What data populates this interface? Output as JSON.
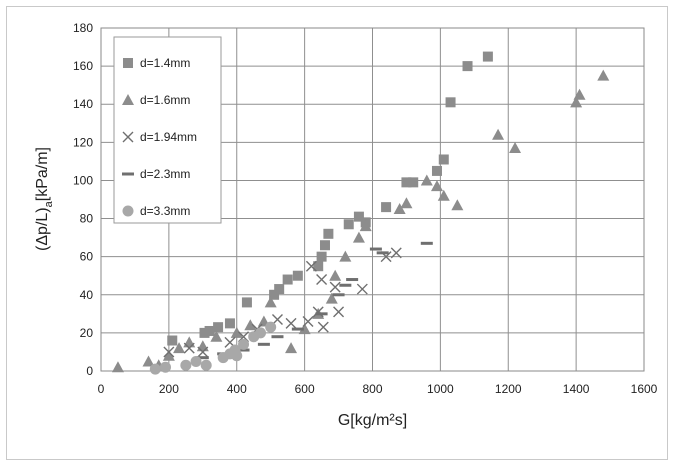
{
  "chart_data": {
    "type": "scatter",
    "xlabel": "G[kg/m²s]",
    "ylabel_main": "(Δp/L)",
    "ylabel_sub": "a",
    "ylabel_unit": "[kPa/m]",
    "xlim": [
      0,
      1600
    ],
    "ylim": [
      0,
      180
    ],
    "xticks": [
      "0",
      "200",
      "400",
      "600",
      "800",
      "1000",
      "1200",
      "1400",
      "1600"
    ],
    "yticks": [
      "0",
      "20",
      "40",
      "60",
      "80",
      "100",
      "120",
      "140",
      "160",
      "180"
    ],
    "grid": true,
    "legend_position": "top-left",
    "marker_color": "#8c8c8c",
    "series": [
      {
        "name": "d=1.4mm",
        "marker": "square",
        "points": [
          [
            210,
            16
          ],
          [
            305,
            20
          ],
          [
            320,
            21
          ],
          [
            345,
            23
          ],
          [
            380,
            25
          ],
          [
            430,
            36
          ],
          [
            510,
            40
          ],
          [
            525,
            43
          ],
          [
            550,
            48
          ],
          [
            580,
            50
          ],
          [
            640,
            55
          ],
          [
            650,
            60
          ],
          [
            660,
            66
          ],
          [
            670,
            72
          ],
          [
            730,
            77
          ],
          [
            760,
            81
          ],
          [
            780,
            78
          ],
          [
            840,
            86
          ],
          [
            900,
            99
          ],
          [
            920,
            99
          ],
          [
            990,
            105
          ],
          [
            1010,
            111
          ],
          [
            1030,
            141
          ],
          [
            1080,
            160
          ],
          [
            1140,
            165
          ]
        ]
      },
      {
        "name": "d=1.6mm",
        "marker": "triangle",
        "points": [
          [
            50,
            2
          ],
          [
            140,
            5
          ],
          [
            170,
            3
          ],
          [
            200,
            8
          ],
          [
            230,
            12
          ],
          [
            260,
            15
          ],
          [
            300,
            13
          ],
          [
            340,
            18
          ],
          [
            400,
            20
          ],
          [
            440,
            24
          ],
          [
            480,
            26
          ],
          [
            500,
            36
          ],
          [
            560,
            12
          ],
          [
            600,
            22
          ],
          [
            640,
            30
          ],
          [
            680,
            38
          ],
          [
            690,
            50
          ],
          [
            720,
            60
          ],
          [
            760,
            70
          ],
          [
            780,
            76
          ],
          [
            880,
            85
          ],
          [
            900,
            88
          ],
          [
            960,
            100
          ],
          [
            990,
            97
          ],
          [
            1010,
            92
          ],
          [
            1050,
            87
          ],
          [
            1170,
            124
          ],
          [
            1220,
            117
          ],
          [
            1400,
            141
          ],
          [
            1410,
            145
          ],
          [
            1480,
            155
          ]
        ]
      },
      {
        "name": "d=1.94mm",
        "marker": "cross",
        "points": [
          [
            200,
            10
          ],
          [
            260,
            12
          ],
          [
            300,
            10
          ],
          [
            380,
            15
          ],
          [
            420,
            18
          ],
          [
            460,
            22
          ],
          [
            520,
            27
          ],
          [
            560,
            25
          ],
          [
            610,
            26
          ],
          [
            620,
            55
          ],
          [
            640,
            31
          ],
          [
            650,
            48
          ],
          [
            655,
            23
          ],
          [
            690,
            44
          ],
          [
            700,
            31
          ],
          [
            770,
            43
          ],
          [
            840,
            60
          ],
          [
            870,
            62
          ]
        ]
      },
      {
        "name": "d=2.3mm",
        "marker": "dash",
        "points": [
          [
            300,
            7
          ],
          [
            360,
            9
          ],
          [
            420,
            11
          ],
          [
            480,
            14
          ],
          [
            520,
            18
          ],
          [
            580,
            22
          ],
          [
            650,
            30
          ],
          [
            700,
            40
          ],
          [
            720,
            45
          ],
          [
            740,
            48
          ],
          [
            810,
            64
          ],
          [
            830,
            62
          ],
          [
            960,
            67
          ]
        ]
      },
      {
        "name": "d=3.3mm",
        "marker": "circle",
        "points": [
          [
            160,
            1
          ],
          [
            190,
            2
          ],
          [
            250,
            3
          ],
          [
            280,
            5
          ],
          [
            310,
            3
          ],
          [
            360,
            7
          ],
          [
            380,
            9
          ],
          [
            395,
            11
          ],
          [
            400,
            8
          ],
          [
            420,
            14
          ],
          [
            450,
            18
          ],
          [
            470,
            20
          ],
          [
            500,
            23
          ]
        ]
      }
    ]
  }
}
